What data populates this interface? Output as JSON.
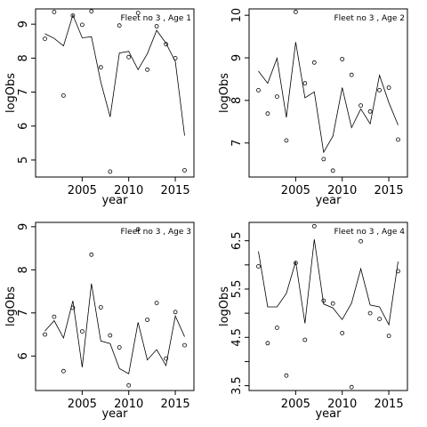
{
  "chart_data": [
    {
      "type": "scatter",
      "title": "Fleet no 3 , Age 1",
      "xlabel": "year",
      "ylabel": "logObs",
      "xlim": [
        2000,
        2017
      ],
      "ylim": [
        4.5,
        9.45
      ],
      "xticks": [
        2005,
        2010,
        2015
      ],
      "xtick_labels": [
        "2005",
        "2010",
        "2015"
      ],
      "yticks": [
        5,
        6,
        7,
        8,
        9
      ],
      "ytick_labels": [
        "5",
        "6",
        "7",
        "8",
        "9"
      ],
      "series": [
        {
          "values_type": "observed points",
          "x": [
            2001,
            2002,
            2003,
            2004,
            2005,
            2006,
            2007,
            2008,
            2009,
            2010,
            2011,
            2012,
            2013,
            2014,
            2015,
            2016
          ],
          "y": [
            8.57,
            9.36,
            6.9,
            9.25,
            8.98,
            9.38,
            7.73,
            4.66,
            8.96,
            8.03,
            9.33,
            7.66,
            8.94,
            8.41,
            8.0,
            4.7
          ]
        },
        {
          "values_type": "fitted line",
          "x": [
            2001,
            2002,
            2003,
            2004,
            2005,
            2006,
            2007,
            2008,
            2009,
            2010,
            2011,
            2012,
            2013,
            2014,
            2015,
            2016
          ],
          "y": [
            8.72,
            8.58,
            8.36,
            9.27,
            8.6,
            8.63,
            7.3,
            6.27,
            8.15,
            8.2,
            7.66,
            8.13,
            8.82,
            8.44,
            7.9,
            5.72
          ]
        }
      ]
    },
    {
      "type": "scatter",
      "title": "Fleet no 3 , Age 2",
      "xlabel": "year",
      "ylabel": "logObs",
      "xlim": [
        2000,
        2017
      ],
      "ylim": [
        6.2,
        10.15
      ],
      "xticks": [
        2005,
        2010,
        2015
      ],
      "xtick_labels": [
        "2005",
        "2010",
        "2015"
      ],
      "yticks": [
        7,
        8,
        9,
        10
      ],
      "ytick_labels": [
        "7",
        "8",
        "9",
        "10"
      ],
      "series": [
        {
          "values_type": "observed points",
          "x": [
            2001,
            2002,
            2003,
            2004,
            2005,
            2006,
            2007,
            2008,
            2009,
            2010,
            2011,
            2012,
            2013,
            2014,
            2015,
            2016
          ],
          "y": [
            8.24,
            7.69,
            8.09,
            7.06,
            10.08,
            8.4,
            8.89,
            6.62,
            6.35,
            8.97,
            8.6,
            7.88,
            7.74,
            8.24,
            8.3,
            7.08
          ]
        },
        {
          "values_type": "fitted line",
          "x": [
            2001,
            2002,
            2003,
            2004,
            2005,
            2006,
            2007,
            2008,
            2009,
            2010,
            2011,
            2012,
            2013,
            2014,
            2015,
            2016
          ],
          "y": [
            8.69,
            8.4,
            8.99,
            7.6,
            9.37,
            8.06,
            8.2,
            6.78,
            7.16,
            8.3,
            7.36,
            7.8,
            7.45,
            8.59,
            7.95,
            7.42
          ]
        }
      ]
    },
    {
      "type": "scatter",
      "title": "Fleet no 3 , Age 3",
      "xlabel": "year",
      "ylabel": "logObs",
      "xlim": [
        2000,
        2017
      ],
      "ylim": [
        5.2,
        9.1
      ],
      "xticks": [
        2005,
        2010,
        2015
      ],
      "xtick_labels": [
        "2005",
        "2010",
        "2015"
      ],
      "yticks": [
        6,
        7,
        8,
        9
      ],
      "ytick_labels": [
        "6",
        "7",
        "8",
        "9"
      ],
      "series": [
        {
          "values_type": "observed points",
          "x": [
            2001,
            2002,
            2003,
            2004,
            2005,
            2006,
            2007,
            2008,
            2009,
            2010,
            2011,
            2012,
            2013,
            2014,
            2015,
            2016
          ],
          "y": [
            6.5,
            6.91,
            5.65,
            7.12,
            6.57,
            8.35,
            7.13,
            6.48,
            6.2,
            5.32,
            8.94,
            6.84,
            7.23,
            5.94,
            7.02,
            6.25
          ]
        },
        {
          "values_type": "fitted line",
          "x": [
            2001,
            2002,
            2003,
            2004,
            2005,
            2006,
            2007,
            2008,
            2009,
            2010,
            2011,
            2012,
            2013,
            2014,
            2015,
            2016
          ],
          "y": [
            6.58,
            6.82,
            6.42,
            7.28,
            5.74,
            7.68,
            6.35,
            6.29,
            5.71,
            5.59,
            6.78,
            5.91,
            6.15,
            5.78,
            6.93,
            6.45
          ]
        }
      ]
    },
    {
      "type": "scatter",
      "title": "Fleet no 3 , Age 4",
      "xlabel": "year",
      "ylabel": "logObs",
      "xlim": [
        2000,
        2017
      ],
      "ylim": [
        3.4,
        6.88
      ],
      "xticks": [
        2005,
        2010,
        2015
      ],
      "xtick_labels": [
        "2005",
        "2010",
        "2015"
      ],
      "yticks": [
        3.5,
        4.5,
        5.5,
        6.5
      ],
      "ytick_labels": [
        "3.5",
        "4.5",
        "5.5",
        "6.5"
      ],
      "extra_unlabeled_yticks": [
        4,
        5,
        6
      ],
      "series": [
        {
          "values_type": "observed points",
          "x": [
            2001,
            2002,
            2003,
            2004,
            2005,
            2006,
            2007,
            2008,
            2009,
            2010,
            2011,
            2012,
            2013,
            2014,
            2015,
            2016
          ],
          "y": [
            5.97,
            4.38,
            4.7,
            3.71,
            6.04,
            4.45,
            6.8,
            5.26,
            5.2,
            4.59,
            3.47,
            6.49,
            5.0,
            4.88,
            4.53,
            5.87
          ]
        },
        {
          "values_type": "fitted line",
          "x": [
            2001,
            2002,
            2003,
            2004,
            2005,
            2006,
            2007,
            2008,
            2009,
            2010,
            2011,
            2012,
            2013,
            2014,
            2015,
            2016
          ],
          "y": [
            6.28,
            5.13,
            5.13,
            5.41,
            6.07,
            4.79,
            6.53,
            5.19,
            5.11,
            4.87,
            5.21,
            5.92,
            5.17,
            5.13,
            4.76,
            6.07
          ]
        }
      ]
    }
  ]
}
